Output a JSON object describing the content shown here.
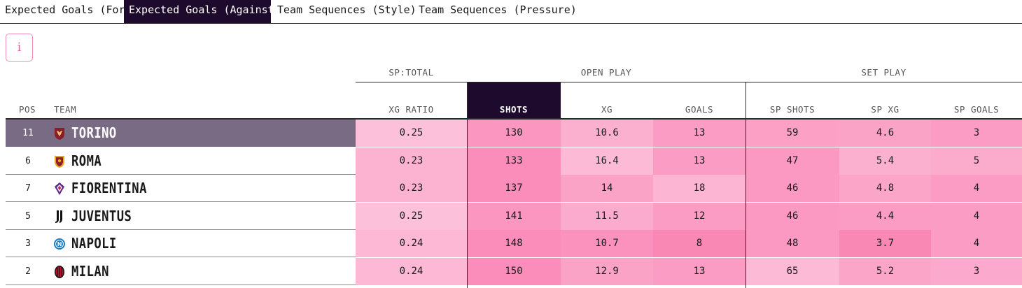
{
  "tabs": [
    {
      "label": "Expected Goals (For)",
      "active": false
    },
    {
      "label": "Expected Goals (Against)",
      "active": true
    },
    {
      "label": "Team Sequences (Style)",
      "active": false
    },
    {
      "label": "Team Sequences (Pressure)",
      "active": false
    }
  ],
  "info_button": {
    "label": "i"
  },
  "table": {
    "groups": {
      "sp_total": "SP:TOTAL",
      "open_play": "OPEN PLAY",
      "set_play": "SET PLAY"
    },
    "columns": {
      "pos": "POS",
      "team": "TEAM",
      "xg_ratio": "XG RATIO",
      "shots": "SHOTS",
      "xg": "XG",
      "goals": "GOALS",
      "sp_shots": "SP SHOTS",
      "sp_xg": "SP XG",
      "sp_goals": "SP GOALS"
    },
    "sorted_column": "shots",
    "rows": [
      {
        "pos": "11",
        "team": "TORINO",
        "crest": "torino-crest-icon",
        "xg_ratio": "0.25",
        "shots": "130",
        "xg": "10.6",
        "goals": "13",
        "sp_shots": "59",
        "sp_xg": "4.6",
        "sp_goals": "3",
        "highlighted": true
      },
      {
        "pos": "6",
        "team": "ROMA",
        "crest": "roma-crest-icon",
        "xg_ratio": "0.23",
        "shots": "133",
        "xg": "16.4",
        "goals": "13",
        "sp_shots": "47",
        "sp_xg": "5.4",
        "sp_goals": "5",
        "highlighted": false
      },
      {
        "pos": "7",
        "team": "FIORENTINA",
        "crest": "fiorentina-crest-icon",
        "xg_ratio": "0.23",
        "shots": "137",
        "xg": "14",
        "goals": "18",
        "sp_shots": "46",
        "sp_xg": "4.8",
        "sp_goals": "4",
        "highlighted": false
      },
      {
        "pos": "5",
        "team": "JUVENTUS",
        "crest": "juventus-crest-icon",
        "xg_ratio": "0.25",
        "shots": "141",
        "xg": "11.5",
        "goals": "12",
        "sp_shots": "46",
        "sp_xg": "4.4",
        "sp_goals": "4",
        "highlighted": false
      },
      {
        "pos": "3",
        "team": "NAPOLI",
        "crest": "napoli-crest-icon",
        "xg_ratio": "0.24",
        "shots": "148",
        "xg": "10.7",
        "goals": "8",
        "sp_shots": "48",
        "sp_xg": "3.7",
        "sp_goals": "4",
        "highlighted": false
      },
      {
        "pos": "2",
        "team": "MILAN",
        "crest": "milan-crest-icon",
        "xg_ratio": "0.24",
        "shots": "150",
        "xg": "12.9",
        "goals": "13",
        "sp_shots": "65",
        "sp_xg": "5.2",
        "sp_goals": "3",
        "highlighted": false
      }
    ],
    "cell_colors": [
      [
        "#fcc0da",
        "#fb96c0",
        "#fbb0d0",
        "#fb9cc4",
        "#fca0c6",
        "#fba2c7",
        "#fb9cc4"
      ],
      [
        "#fcb3d2",
        "#fa8db9",
        "#fcbad6",
        "#fb9cc4",
        "#fb99c2",
        "#fcb0d0",
        "#fbaccd"
      ],
      [
        "#fcb3d2",
        "#fa8db9",
        "#fba2c7",
        "#fcb6d3",
        "#fb99c2",
        "#fba5c9",
        "#fb9cc4"
      ],
      [
        "#fcc0da",
        "#fb96c0",
        "#fbacce",
        "#fb9cc4",
        "#fb99c2",
        "#fb9cc4",
        "#fb9cc4"
      ],
      [
        "#fcb8d4",
        "#fa8db9",
        "#fb92bd",
        "#fa88b5",
        "#fb99c2",
        "#fa88b5",
        "#fb9cc4"
      ],
      [
        "#fcb8d4",
        "#fa8db9",
        "#fba2c7",
        "#fb9cc4",
        "#fcbad6",
        "#fba5c9",
        "#fba9cc"
      ]
    ]
  }
}
